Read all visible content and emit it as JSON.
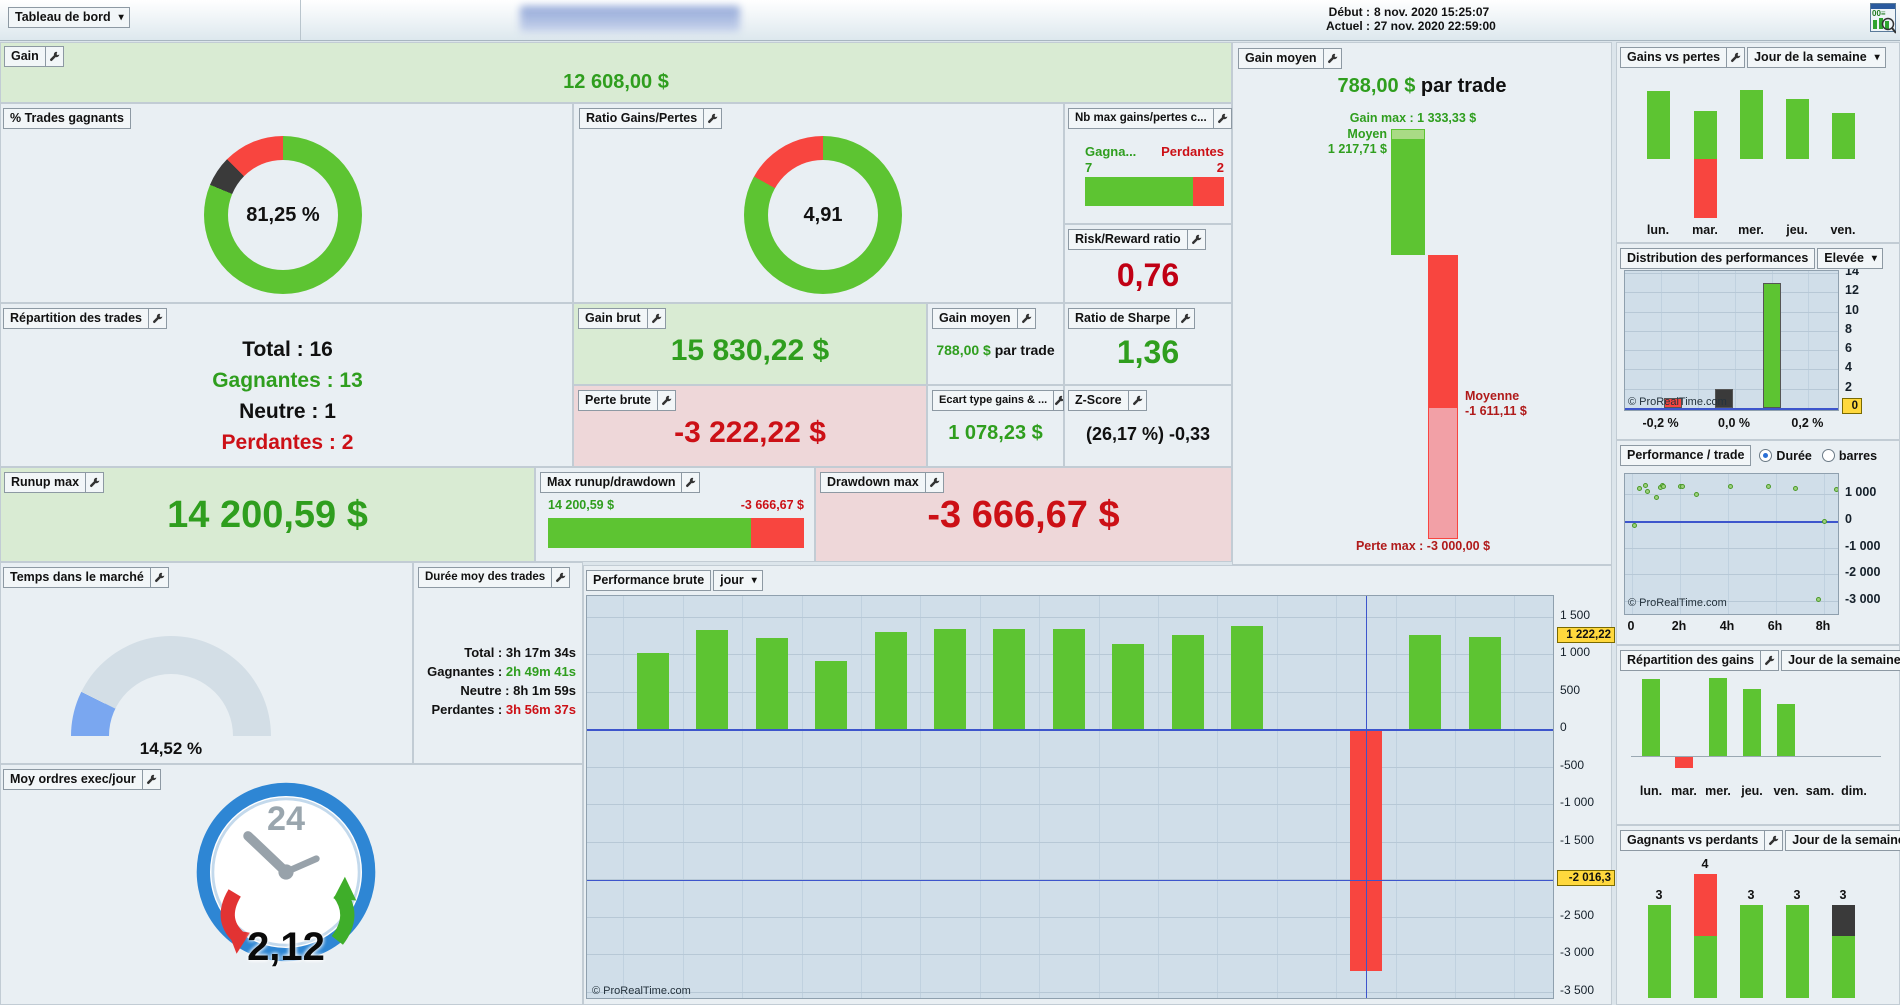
{
  "ui": {
    "dropdown_arrow": "▾"
  },
  "colors": {
    "green_bar": "#5dc432",
    "green_light": "#a9db85",
    "red_bar": "#f8453f",
    "red_light": "#f2a0a6",
    "dark": "#3a3a3a",
    "green_text": "#2f9e1e",
    "red_text": "#cc1016",
    "gauge_blue": "#7aa7f0",
    "gauge_bg": "#d3dee6",
    "highlight_yellow": "#ffd83d",
    "chart_bg": "#d0dee9",
    "blue_line": "#3d55cc"
  },
  "top_bar": {
    "dashboard_button": "Tableau de bord",
    "start_label": "Début :",
    "start_value": "8 nov. 2020 15:25:07",
    "current_label": "Actuel :",
    "current_value": "27 nov. 2020 22:59:00"
  },
  "panels": {
    "gain": {
      "title": "Gain",
      "value": "12 608,00 $"
    },
    "winrate": {
      "title": "% Trades gagnants",
      "value": "81,25 %"
    },
    "ratio": {
      "title": "Ratio Gains/Pertes",
      "value": "4,91"
    },
    "nb_max": {
      "title": "Nb max gains/pertes c...",
      "left_label": "Gagna...",
      "left_value": "7",
      "right_label": "Perdantes",
      "right_value": "2"
    },
    "risk_reward": {
      "title": "Risk/Reward ratio",
      "value": "0,76"
    },
    "repartition": {
      "title": "Répartition des trades",
      "total": "Total : 16",
      "gagnantes": "Gagnantes : 13",
      "neutre": "Neutre : 1",
      "perdantes": "Perdantes : 2"
    },
    "gain_brut": {
      "title": "Gain brut",
      "value": "15 830,22 $"
    },
    "gain_moyen_small": {
      "title": "Gain moyen",
      "value": "788,00 $",
      "suffix": " par trade"
    },
    "ratio_sharpe": {
      "title": "Ratio de Sharpe",
      "value": "1,36"
    },
    "perte_brute": {
      "title": "Perte brute",
      "value": "-3 222,22 $"
    },
    "ecart_type": {
      "title": "Ecart type gains & ...",
      "value": "1 078,23 $"
    },
    "z_score": {
      "title": "Z-Score",
      "value": "(26,17 %) -0,33"
    },
    "runup_max": {
      "title": "Runup max",
      "value": "14 200,59 $"
    },
    "max_runup_drawdown": {
      "title": "Max runup/drawdown",
      "left_value": "14 200,59 $",
      "right_value": "-3 666,67 $"
    },
    "drawdown_max": {
      "title": "Drawdown max",
      "value": "-3 666,67 $"
    },
    "gain_moyen_big": {
      "title": "Gain moyen",
      "value": "788,00 $",
      "suffix": " par trade",
      "gain_max_label": "Gain max : 1 333,33 $",
      "moyen_label": "Moyen",
      "moyen_value": "1 217,71 $",
      "moyenne_label": "Moyenne",
      "moyenne_value": "-1 611,11 $",
      "perte_max_label": "Perte max : -3 000,00 $"
    },
    "temps_marche": {
      "title": "Temps dans le marché",
      "value": "14,52 %"
    },
    "duree_moy": {
      "title": "Durée moy des trades",
      "rows": [
        {
          "label": "Total :",
          "value": "3h 17m 34s",
          "color": "#111111"
        },
        {
          "label": "Gagnantes :",
          "value": "2h 49m 41s",
          "color": "#2f9e1e"
        },
        {
          "label": "Neutre :",
          "value": "8h 1m 59s",
          "color": "#111111"
        },
        {
          "label": "Perdantes :",
          "value": "3h 56m 37s",
          "color": "#cc1016"
        }
      ]
    },
    "moy_ordres": {
      "title": "Moy ordres exec/jour",
      "value": "2,12",
      "clock_number": "24"
    },
    "performance_brute": {
      "title": "Performance brute",
      "period": "jour",
      "copyright": "© ProRealTime.com"
    }
  },
  "sidebar": {
    "gains_vs_pertes": {
      "title": "Gains vs pertes",
      "selector": "Jour de la semaine"
    },
    "distribution": {
      "title": "Distribution des performances",
      "selector": "Elevée",
      "copyright": "© ProRealTime.com"
    },
    "perf_trade": {
      "title": "Performance / trade",
      "option_duree": "Durée",
      "option_barres": "barres",
      "copyright": "© ProRealTime.com"
    },
    "repartition_gains": {
      "title": "Répartition des gains",
      "selector": "Jour de la semaine"
    },
    "gagnants_perdants": {
      "title": "Gagnants vs perdants",
      "selector": "Jour de la semaine"
    }
  },
  "chart_data": [
    {
      "id": "winrate_donut",
      "type": "pie",
      "title": "% Trades gagnants",
      "slices": [
        {
          "name": "gagnantes",
          "value": 81.25,
          "color": "green"
        },
        {
          "name": "neutres",
          "value": 6.25,
          "color": "dark"
        },
        {
          "name": "perdantes",
          "value": 12.5,
          "color": "red"
        }
      ],
      "center_label": "81,25 %"
    },
    {
      "id": "ratio_donut",
      "type": "pie",
      "title": "Ratio Gains/Pertes",
      "slices": [
        {
          "name": "gains",
          "value": 83.1,
          "color": "green"
        },
        {
          "name": "pertes",
          "value": 16.9,
          "color": "red"
        }
      ],
      "center_label": "4,91"
    },
    {
      "id": "nb_max_consecutifs",
      "type": "bar",
      "categories": [
        "gagnantes",
        "perdantes"
      ],
      "values": [
        7,
        2
      ]
    },
    {
      "id": "max_runup_drawdown",
      "type": "bar",
      "values": [
        14200.59,
        -3666.67
      ]
    },
    {
      "id": "gain_moyen",
      "type": "bar",
      "gain_max": 1333.33,
      "moyen": 1217.71,
      "moyenne_perte": -1611.11,
      "perte_max": -3000.0
    },
    {
      "id": "temps_marche_gauge",
      "type": "pie",
      "value_pct": 14.52
    },
    {
      "id": "performance_brute",
      "type": "bar",
      "title": "Performance brute",
      "period": "jour",
      "ytick_labels": [
        "1 500",
        "1 000",
        "500",
        "0",
        "-500",
        "-1 000",
        "-1 500",
        "-2 000",
        "-2 500",
        "-3 000",
        "-3 500"
      ],
      "ytick_values": [
        1500,
        1000,
        500,
        0,
        -500,
        -1000,
        -1500,
        -2000,
        -2500,
        -3000,
        -3500
      ],
      "values": [
        1010,
        1320,
        1210,
        910,
        1290,
        1333,
        1333,
        1333,
        1130,
        1250,
        1370,
        null,
        -3222.22,
        1250,
        1222.22
      ],
      "highlights": [
        {
          "label": "1 222,22",
          "value": 1222.22
        },
        {
          "label": "-2 016,3",
          "value": -2016.3
        }
      ],
      "crosshair": {
        "slot": 12,
        "value": -2016.3
      },
      "xlabel": "jours (non étiquetés)",
      "ylim": [
        -3650,
        1800
      ],
      "grid": true
    },
    {
      "id": "gains_vs_pertes",
      "type": "bar",
      "categories": [
        "lun.",
        "mar.",
        "mer.",
        "jeu.",
        "ven."
      ],
      "series": [
        {
          "name": "gains",
          "values": [
            68,
            48,
            69,
            60,
            46
          ]
        },
        {
          "name": "pertes",
          "values": [
            0,
            -59,
            0,
            0,
            0
          ]
        }
      ],
      "unit": "relative heights, no axis shown"
    },
    {
      "id": "distribution_performances",
      "type": "bar",
      "bars": [
        {
          "x": -0.17,
          "value": 1,
          "color": "red"
        },
        {
          "x": -0.03,
          "value": 2,
          "color": "dark"
        },
        {
          "x": 0.1,
          "value": 13,
          "color": "green"
        }
      ],
      "ytick_labels": [
        "14",
        "12",
        "10",
        "8",
        "6",
        "4",
        "2"
      ],
      "ytick_values": [
        14,
        12,
        10,
        8,
        6,
        4,
        2
      ],
      "zero_label": "0",
      "xtick_labels": [
        "-0,2 %",
        "0,0 %",
        "0,2 %"
      ],
      "xtick_values": [
        -0.2,
        0,
        0.2
      ],
      "xlim": [
        -0.3,
        0.33
      ],
      "ylim": [
        0,
        15
      ],
      "grid": true
    },
    {
      "id": "performance_par_trade",
      "type": "scatter",
      "points": [
        [
          0.33,
          1222
        ],
        [
          0.58,
          1333
        ],
        [
          0.63,
          1111
        ],
        [
          1.0,
          889
        ],
        [
          1.2,
          1259
        ],
        [
          1.25,
          1333
        ],
        [
          1.3,
          1296
        ],
        [
          2.0,
          1296
        ],
        [
          2.1,
          1296
        ],
        [
          2.7,
          1000
        ],
        [
          4.1,
          1296
        ],
        [
          5.7,
          1296
        ],
        [
          6.8,
          1222
        ],
        [
          0.1,
          -185
        ],
        [
          7.75,
          -2963
        ],
        [
          8.0,
          0
        ],
        [
          8.5,
          1185
        ]
      ],
      "ytick_labels": [
        "1 000",
        "0",
        "-1 000",
        "-2 000",
        "-3 000"
      ],
      "ytick_values": [
        1000,
        0,
        -1000,
        -2000,
        -3000
      ],
      "xtick_labels": [
        "0",
        "2h",
        "4h",
        "6h",
        "8h"
      ],
      "xtick_values": [
        0,
        2,
        4,
        6,
        8
      ],
      "xlabel": "durée",
      "xlim": [
        0,
        9
      ],
      "ylim": [
        -3400,
        1450
      ],
      "grid": true
    },
    {
      "id": "repartition_gains",
      "type": "bar",
      "categories": [
        "lun.",
        "mar.",
        "mer.",
        "jeu.",
        "ven.",
        "sam.",
        "dim."
      ],
      "values": [
        77,
        -11,
        78,
        67,
        52,
        0,
        0
      ],
      "unit": "relative heights, no axis shown"
    },
    {
      "id": "gagnants_vs_perdants",
      "type": "bar",
      "categories": [
        "lun.",
        "mar.",
        "mer.",
        "jeu.",
        "ven."
      ],
      "bar_labels": [
        "3",
        "4",
        "3",
        "3",
        "3"
      ],
      "stacks": [
        [
          {
            "color": "green",
            "value": 3
          }
        ],
        [
          {
            "color": "red",
            "value": 2
          },
          {
            "color": "green",
            "value": 2
          }
        ],
        [
          {
            "color": "green",
            "value": 3
          }
        ],
        [
          {
            "color": "green",
            "value": 3
          }
        ],
        [
          {
            "color": "dark",
            "value": 1
          },
          {
            "color": "green",
            "value": 2
          }
        ]
      ]
    }
  ]
}
